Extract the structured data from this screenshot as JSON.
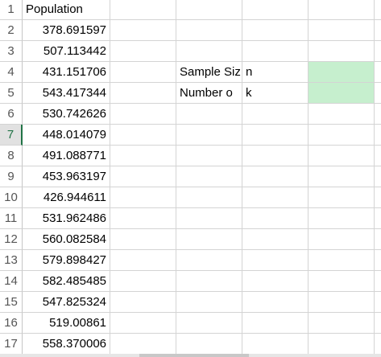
{
  "sheet": {
    "row_numbers": [
      1,
      2,
      3,
      4,
      5,
      6,
      7,
      8,
      9,
      10,
      11,
      12,
      13,
      14,
      15,
      16,
      17
    ],
    "column_a_header": "Population",
    "column_a_values": [
      378.691597,
      507.113442,
      431.151706,
      543.417344,
      530.742626,
      448.014079,
      491.088771,
      453.963197,
      426.944611,
      531.962486,
      560.082584,
      579.898427,
      582.485485,
      547.825324,
      519.00861,
      558.370006
    ],
    "labels": [
      {
        "row": 4,
        "text": "Sample Siz",
        "symbol": "n"
      },
      {
        "row": 5,
        "text": "Number o",
        "symbol": "k"
      }
    ],
    "selected_row": 7
  }
}
